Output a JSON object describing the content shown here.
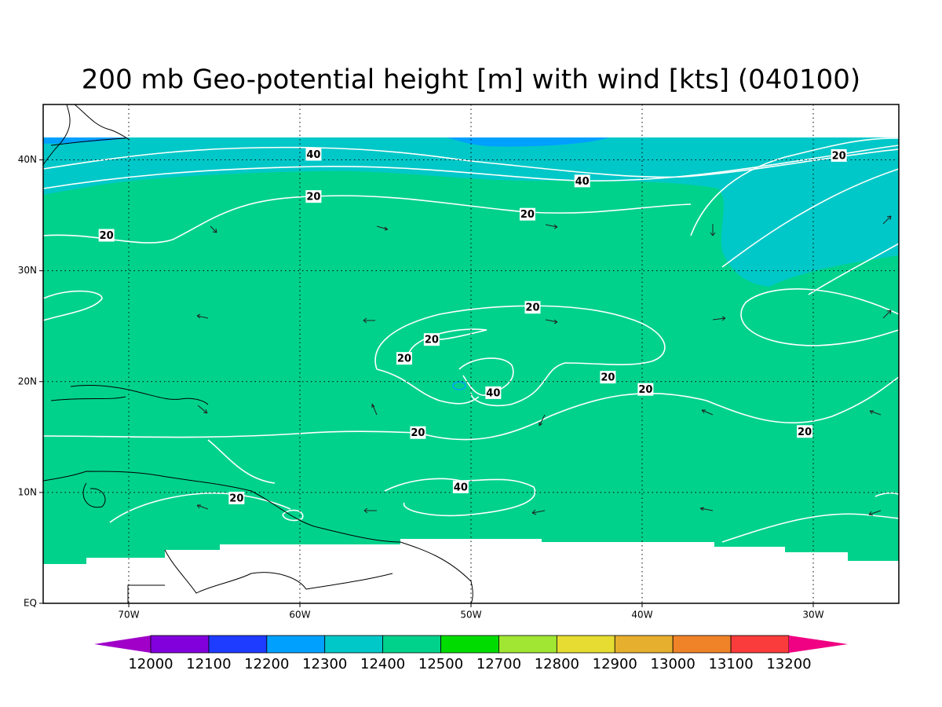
{
  "map": {
    "title": "200 mb Geo-potential height [m] with wind [kts] (040100)",
    "lon_range": [
      -75,
      -25
    ],
    "lat_range": [
      0,
      45
    ],
    "lon_ticks": [
      {
        "value": -70,
        "label": "70W"
      },
      {
        "value": -60,
        "label": "60W"
      },
      {
        "value": -50,
        "label": "50W"
      },
      {
        "value": -40,
        "label": "40W"
      },
      {
        "value": -30,
        "label": "30W"
      }
    ],
    "lat_ticks": [
      {
        "value": 0,
        "label": "EQ"
      },
      {
        "value": 10,
        "label": "10N"
      },
      {
        "value": 20,
        "label": "20N"
      },
      {
        "value": 30,
        "label": "30N"
      },
      {
        "value": 40,
        "label": "40N"
      }
    ],
    "grid": true,
    "contour_labels": [
      {
        "label": "40",
        "lon": -59.2,
        "lat": 40.5
      },
      {
        "label": "40",
        "lon": -43.5,
        "lat": 38.1
      },
      {
        "label": "20",
        "lon": -28.5,
        "lat": 40.4
      },
      {
        "label": "20",
        "lon": -59.2,
        "lat": 36.7
      },
      {
        "label": "20",
        "lon": -46.7,
        "lat": 35.1
      },
      {
        "label": "20",
        "lon": -71.3,
        "lat": 33.2
      },
      {
        "label": "20",
        "lon": -46.4,
        "lat": 26.7
      },
      {
        "label": "20",
        "lon": -52.3,
        "lat": 23.8
      },
      {
        "label": "20",
        "lon": -53.9,
        "lat": 22.1
      },
      {
        "label": "40",
        "lon": -48.7,
        "lat": 19.0
      },
      {
        "label": "20",
        "lon": -42.0,
        "lat": 20.4
      },
      {
        "label": "20",
        "lon": -39.8,
        "lat": 19.3
      },
      {
        "label": "20",
        "lon": -53.1,
        "lat": 15.4
      },
      {
        "label": "20",
        "lon": -30.5,
        "lat": 15.5
      },
      {
        "label": "40",
        "lon": -50.6,
        "lat": 10.5
      },
      {
        "label": "20",
        "lon": -63.7,
        "lat": 9.5
      }
    ],
    "colorbar": {
      "levels": [
        12000,
        12100,
        12200,
        12300,
        12400,
        12500,
        12700,
        12800,
        12900,
        13000,
        13100,
        13200
      ],
      "colors": [
        "#a000c8",
        "#8200dc",
        "#1e3cff",
        "#00a0ff",
        "#00c8c8",
        "#00d28c",
        "#00dc00",
        "#a0e632",
        "#e6dc32",
        "#e6af2d",
        "#f08228",
        "#fa3c3c",
        "#f00082"
      ]
    }
  }
}
